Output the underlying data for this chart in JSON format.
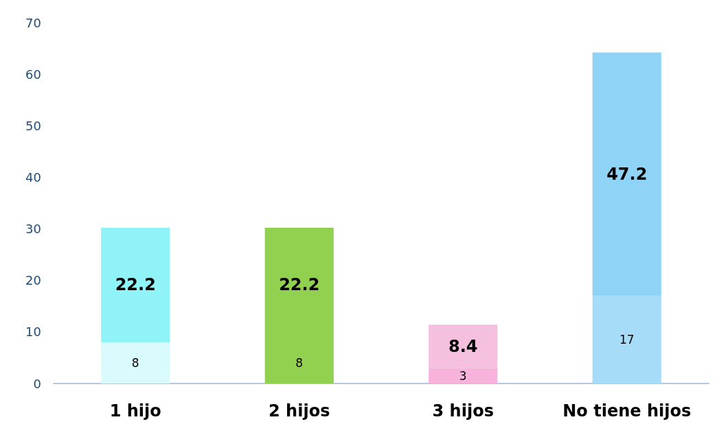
{
  "chart_data": {
    "type": "bar",
    "stacked": true,
    "categories": [
      "1 hijo",
      "2 hijos",
      "3 hijos",
      "No tiene hijos"
    ],
    "series": [
      {
        "colors": [
          "#d9fbfd",
          "#92d050",
          "#f7b3dc",
          "#a6dcf8"
        ],
        "values": [
          8,
          8,
          3,
          17
        ]
      },
      {
        "colors": [
          "#8ff3f7",
          "#92d050",
          "#f4c0de",
          "#8fd3f7"
        ],
        "values": [
          22.2,
          22.2,
          8.4,
          47.2
        ]
      }
    ],
    "ylim": [
      0,
      70
    ],
    "yticks": [
      0,
      10,
      20,
      30,
      40,
      50,
      60,
      70
    ],
    "grid": false,
    "data_labels": true
  }
}
